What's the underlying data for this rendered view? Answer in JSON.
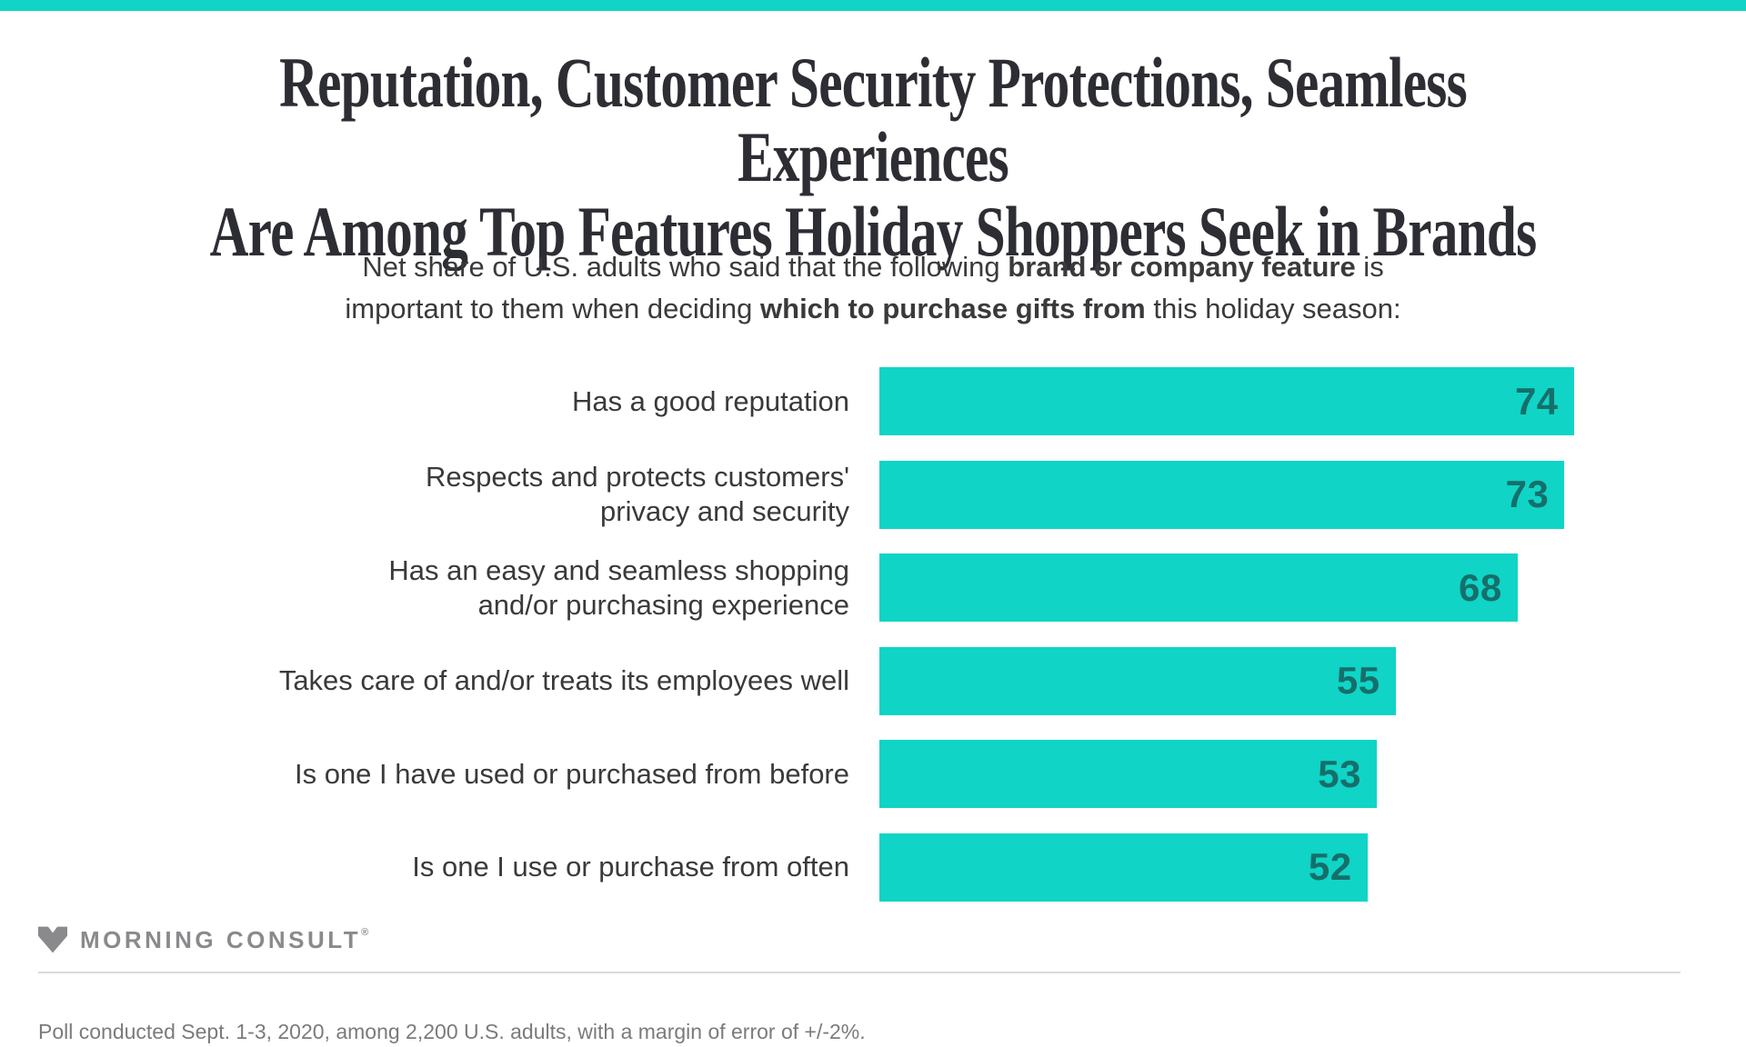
{
  "page": {
    "background": "#ffffff",
    "accent_color": "#10d4c6",
    "title_color": "#2d2d34",
    "text_color": "#3a3a3c",
    "value_label_color": "#156f6a",
    "muted_gray": "#8a8a8d",
    "footer_gray": "#7b7b7d",
    "divider_color": "#dadada"
  },
  "header": {
    "title_line1": "Reputation, Customer Security Protections, Seamless Experiences",
    "title_line2": "Are Among Top Features Holiday Shoppers Seek in Brands",
    "subtitle_segments": [
      {
        "text": "Net share of U.S. adults who said that the following ",
        "bold": false
      },
      {
        "text": "brand or company feature",
        "bold": true
      },
      {
        "text": " is\nimportant to them when deciding ",
        "bold": false
      },
      {
        "text": "which to purchase gifts from",
        "bold": true
      },
      {
        "text": " this holiday season:",
        "bold": false
      }
    ]
  },
  "chart_data": {
    "type": "bar",
    "orientation": "horizontal",
    "title": "Reputation, Customer Security Protections, Seamless Experiences Are Among Top Features Holiday Shoppers Seek in Brands",
    "subtitle_plain": "Net share of U.S. adults who said that the following brand or company feature is important to them when deciding which to purchase gifts from this holiday season:",
    "categories": [
      "Has a good reputation",
      "Respects and protects customers'\nprivacy and security",
      "Has an easy and seamless shopping\nand/or purchasing experience",
      "Takes care of and/or treats its employees well",
      "Is one I have used or purchased from before",
      "Is one I use or purchase from often"
    ],
    "values": [
      74,
      73,
      68,
      55,
      53,
      52
    ],
    "value_labels_inside_bar": true,
    "axis_shown": false,
    "xlim": [
      0,
      100
    ],
    "bar_color": "#10d4c6",
    "value_label_color": "#156f6a",
    "legend": "none",
    "grid": "off"
  },
  "footer": {
    "logo_text": "MORNING CONSULT",
    "registered_mark": "®",
    "poll_note": "Poll conducted Sept. 1-3, 2020, among 2,200 U.S. adults, with a margin of error of +/-2%."
  }
}
